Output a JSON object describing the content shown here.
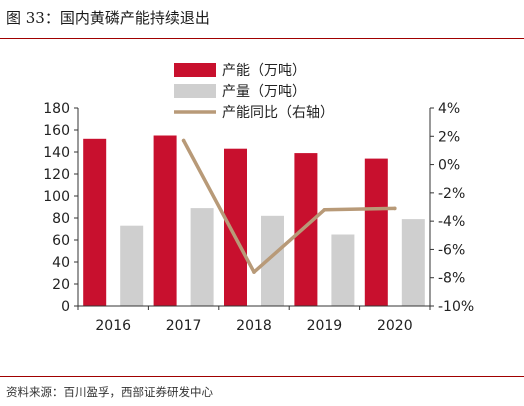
{
  "figure_title": "图 33：国内黄磷产能持续退出",
  "source_note": "资料来源：百川盈孚，西部证券研发中心",
  "colors": {
    "capacity": "#c8102e",
    "output": "#cfcfcf",
    "yoy_line": "#b89a78",
    "rule": "#a00000",
    "axis": "#333333"
  },
  "chart_data": {
    "type": "bar",
    "title": "",
    "categories": [
      "2016",
      "2017",
      "2018",
      "2019",
      "2020"
    ],
    "series": [
      {
        "name": "产能（万吨）",
        "type": "bar",
        "axis": "left",
        "values": [
          152,
          155,
          143,
          139,
          134
        ]
      },
      {
        "name": "产量（万吨）",
        "type": "bar",
        "axis": "left",
        "values": [
          73,
          89,
          82,
          65,
          79
        ]
      },
      {
        "name": "产能同比（右轴）",
        "type": "line",
        "axis": "right",
        "values": [
          null,
          1.7,
          -7.6,
          -3.2,
          -3.1
        ]
      }
    ],
    "ylim_left": [
      0,
      180
    ],
    "yticks_left": [
      "0",
      "20",
      "40",
      "60",
      "80",
      "100",
      "120",
      "140",
      "160",
      "180"
    ],
    "ylim_right": [
      -10,
      4
    ],
    "yticks_right": [
      "-10%",
      "-8%",
      "-6%",
      "-4%",
      "-2%",
      "0%",
      "2%",
      "4%"
    ],
    "grid": false,
    "legend_position": "top-center"
  }
}
